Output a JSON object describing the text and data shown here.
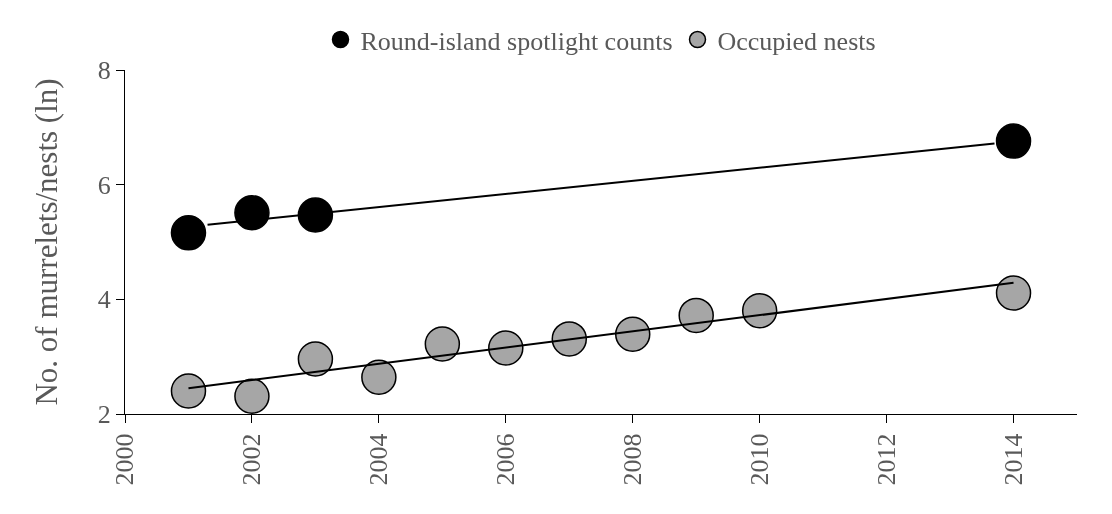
{
  "chart_data": {
    "type": "scatter",
    "ylabel": "No. of murrelets/nests (ln)",
    "xlim": [
      2000,
      2015
    ],
    "xticks": [
      2000,
      2002,
      2004,
      2006,
      2008,
      2010,
      2012,
      2014
    ],
    "ylim": [
      2,
      8
    ],
    "yticks": [
      2,
      4,
      6,
      8
    ],
    "grid": false,
    "legend": "top",
    "marker": "circle",
    "series": [
      {
        "name": "Round-island spotlight counts",
        "color": "#000000",
        "x": [
          2001,
          2002,
          2003,
          2014
        ],
        "values": [
          5.16,
          5.51,
          5.47,
          6.76
        ]
      },
      {
        "name": "Occupied nests",
        "color": "#a6a6a6",
        "x": [
          2001,
          2002,
          2003,
          2004,
          2005,
          2006,
          2007,
          2008,
          2009,
          2010,
          2014
        ],
        "values": [
          2.4,
          2.31,
          2.96,
          2.64,
          3.22,
          3.15,
          3.31,
          3.39,
          3.72,
          3.8,
          4.11
        ]
      },
      {
        "type": "line",
        "marker": "none",
        "color": "#000000",
        "x": [
          2001.3,
          2013.7
        ],
        "values": [
          5.3,
          6.72
        ]
      },
      {
        "type": "line",
        "marker": "none",
        "color": "#000000",
        "x": [
          2001,
          2014
        ],
        "values": [
          2.45,
          4.29
        ]
      }
    ]
  }
}
